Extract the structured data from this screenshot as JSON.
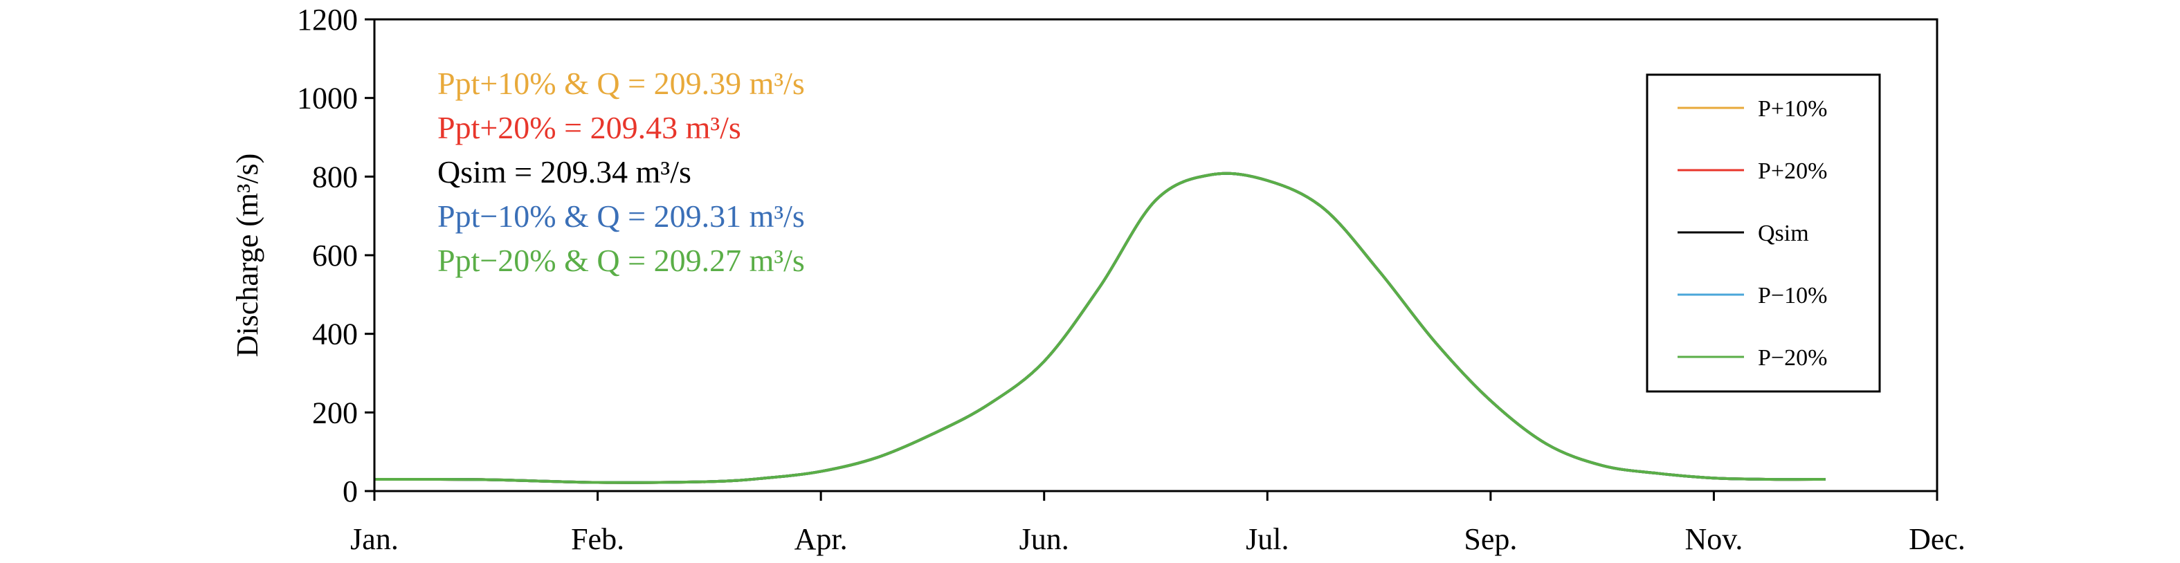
{
  "chart_data": {
    "type": "line",
    "ylabel": "Discharge (m³/s)",
    "xlabel": "",
    "ylim": [
      0,
      1200
    ],
    "yticks": [
      0,
      200,
      400,
      600,
      800,
      1000,
      1200
    ],
    "xlim": [
      0,
      14
    ],
    "xticks": [
      {
        "pos": 0,
        "label": "Jan."
      },
      {
        "pos": 2,
        "label": "Feb."
      },
      {
        "pos": 4,
        "label": "Apr."
      },
      {
        "pos": 6,
        "label": "Jun."
      },
      {
        "pos": 8,
        "label": "Jul."
      },
      {
        "pos": 10,
        "label": "Sep."
      },
      {
        "pos": 12,
        "label": "Nov."
      },
      {
        "pos": 14,
        "label": "Dec."
      }
    ],
    "grid": false,
    "legend_position": "top-right",
    "annotations": [
      {
        "text": "Ppt+10% & Q = 209.39 m³/s",
        "color": "#e8a93a"
      },
      {
        "text": "Ppt+20% = 209.43 m³/s",
        "color": "#e8362b"
      },
      {
        "text": "Qsim = 209.34 m³/s",
        "color": "#000000"
      },
      {
        "text": "Ppt−10% & Q = 209.31 m³/s",
        "color": "#3a6fb7"
      },
      {
        "text": "Ppt−20% & Q = 209.27 m³/s",
        "color": "#5aae47"
      }
    ],
    "series": [
      {
        "name": "P+10%",
        "color": "#e8a93a",
        "x": [
          0,
          1,
          2,
          3,
          3.5,
          4,
          4.5,
          5,
          5.5,
          6,
          6.5,
          7,
          7.5,
          8,
          8.5,
          9,
          9.5,
          10,
          10.5,
          11,
          11.5,
          12,
          12.5,
          13
        ],
        "y": [
          30,
          29,
          22,
          24,
          33,
          50,
          85,
          145,
          220,
          330,
          520,
          740,
          805,
          790,
          720,
          560,
          380,
          230,
          120,
          65,
          45,
          33,
          30,
          30
        ]
      },
      {
        "name": "P+20%",
        "color": "#e8362b",
        "x": [
          0,
          1,
          2,
          3,
          3.5,
          4,
          4.5,
          5,
          5.5,
          6,
          6.5,
          7,
          7.5,
          8,
          8.5,
          9,
          9.5,
          10,
          10.5,
          11,
          11.5,
          12,
          12.5,
          13
        ],
        "y": [
          30,
          29,
          22,
          24,
          33,
          50,
          85,
          145,
          220,
          330,
          520,
          740,
          805,
          790,
          720,
          560,
          380,
          230,
          120,
          65,
          45,
          33,
          30,
          30
        ]
      },
      {
        "name": "Qsim",
        "color": "#000000",
        "x": [
          0,
          1,
          2,
          3,
          3.5,
          4,
          4.5,
          5,
          5.5,
          6,
          6.5,
          7,
          7.5,
          8,
          8.5,
          9,
          9.5,
          10,
          10.5,
          11,
          11.5,
          12,
          12.5,
          13
        ],
        "y": [
          30,
          29,
          22,
          24,
          33,
          50,
          85,
          145,
          220,
          330,
          520,
          740,
          805,
          790,
          720,
          560,
          380,
          230,
          120,
          65,
          45,
          33,
          30,
          30
        ]
      },
      {
        "name": "P−10%",
        "color": "#4aa6d9",
        "x": [
          0,
          1,
          2,
          3,
          3.5,
          4,
          4.5,
          5,
          5.5,
          6,
          6.5,
          7,
          7.5,
          8,
          8.5,
          9,
          9.5,
          10,
          10.5,
          11,
          11.5,
          12,
          12.5,
          13
        ],
        "y": [
          30,
          29,
          22,
          24,
          33,
          50,
          85,
          145,
          220,
          330,
          520,
          740,
          805,
          790,
          720,
          560,
          380,
          230,
          120,
          65,
          45,
          33,
          30,
          30
        ]
      },
      {
        "name": "P−20%",
        "color": "#5aae47",
        "x": [
          0,
          1,
          2,
          3,
          3.5,
          4,
          4.5,
          5,
          5.5,
          6,
          6.5,
          7,
          7.5,
          8,
          8.5,
          9,
          9.5,
          10,
          10.5,
          11,
          11.5,
          12,
          12.5,
          13
        ],
        "y": [
          30,
          29,
          22,
          24,
          33,
          50,
          85,
          145,
          220,
          330,
          520,
          740,
          805,
          790,
          720,
          560,
          380,
          230,
          120,
          65,
          45,
          33,
          30,
          30
        ]
      }
    ]
  }
}
